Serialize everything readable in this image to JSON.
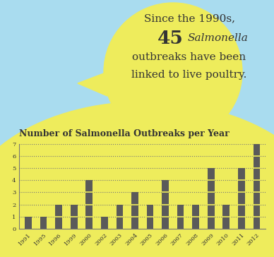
{
  "header": {
    "lines": [
      "Since the 1990s,",
      "45 Salmonella",
      "outbreaks have been",
      "linked to live poultry."
    ]
  },
  "chart_data": {
    "type": "bar",
    "title": "Number of Salmonella Outbreaks per Year",
    "categories": [
      "1991",
      "1995",
      "1996",
      "1999",
      "2000",
      "2002",
      "2003",
      "2004",
      "2005",
      "2006",
      "2007",
      "2008",
      "2009",
      "2010",
      "2011",
      "2012"
    ],
    "values": [
      1,
      1,
      2,
      2,
      4,
      1,
      2,
      3,
      2,
      4,
      2,
      2,
      5,
      2,
      5,
      7
    ],
    "color": "#5a5a5a",
    "ylim": [
      0,
      7
    ],
    "yticks": [
      0,
      1,
      2,
      3,
      4,
      5,
      6,
      7
    ],
    "grid": true
  }
}
